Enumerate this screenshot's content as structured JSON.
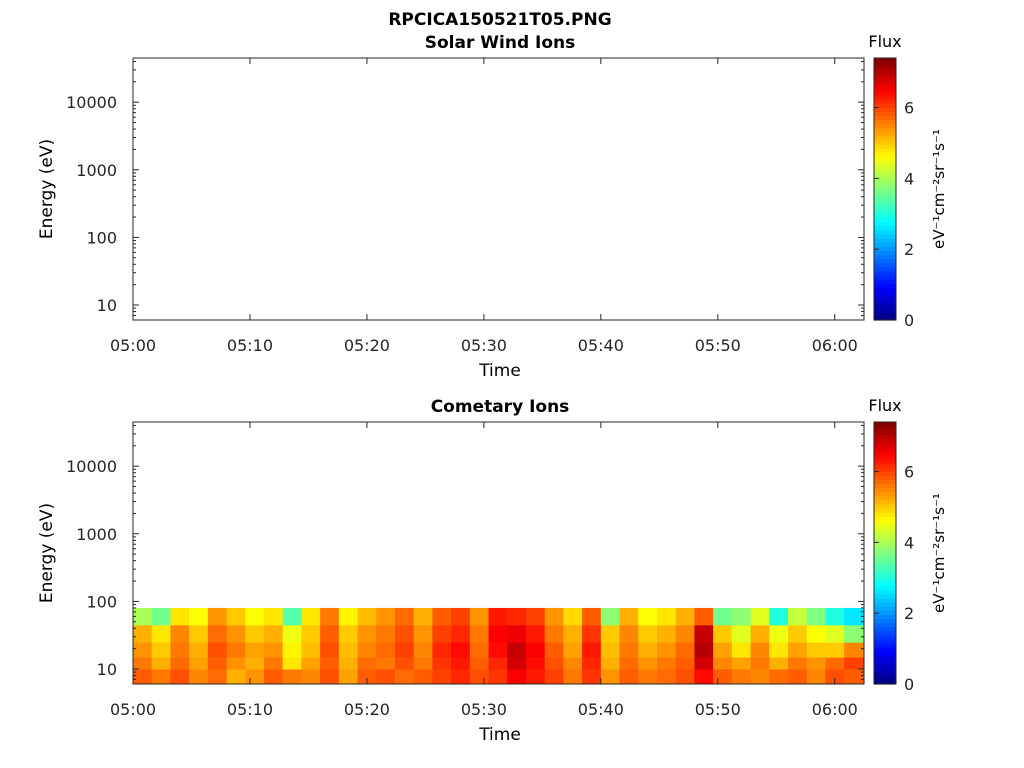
{
  "figure_title": "RPCICA150521T05.PNG",
  "chart_data": [
    {
      "type": "heatmap",
      "title": "Solar Wind Ions",
      "xlabel": "Time",
      "ylabel": "Energy (eV)",
      "x_ticks": [
        "05:00",
        "05:10",
        "05:20",
        "05:30",
        "05:40",
        "05:50",
        "06:00"
      ],
      "x_range_minutes": [
        0,
        62.5
      ],
      "y_scale": "log",
      "y_ticks": [
        10,
        100,
        1000,
        10000
      ],
      "y_tick_labels": [
        "10",
        "100",
        "1000",
        "10000"
      ],
      "ylim": [
        6,
        45000
      ],
      "colorbar": {
        "title": "Flux",
        "label": "eV⁻¹cm⁻²sr⁻¹s⁻¹",
        "ticks": [
          0,
          2,
          4,
          6
        ],
        "range": [
          0,
          7.4
        ],
        "colormap": "jet"
      },
      "cells": []
    },
    {
      "type": "heatmap",
      "title": "Cometary Ions",
      "xlabel": "Time",
      "ylabel": "Energy (eV)",
      "x_ticks": [
        "05:00",
        "05:10",
        "05:20",
        "05:30",
        "05:40",
        "05:50",
        "06:00"
      ],
      "x_range_minutes": [
        0,
        62.5
      ],
      "y_scale": "log",
      "y_ticks": [
        10,
        100,
        1000,
        10000
      ],
      "y_tick_labels": [
        "10",
        "100",
        "1000",
        "10000"
      ],
      "ylim": [
        6,
        45000
      ],
      "colorbar": {
        "title": "Flux",
        "label": "eV⁻¹cm⁻²sr⁻¹s⁻¹",
        "ticks": [
          0,
          2,
          4,
          6
        ],
        "range": [
          0,
          7.4
        ],
        "colormap": "jet"
      },
      "energy_bins_eV": [
        6,
        10,
        15,
        25,
        45,
        80
      ],
      "time_bins_minutes": [
        0,
        1.6,
        3.2,
        4.8,
        6.4,
        8,
        9.6,
        11.2,
        12.8,
        14.4,
        16,
        17.6,
        19.2,
        20.8,
        22.4,
        24,
        25.6,
        27.2,
        28.8,
        30.4,
        32,
        33.6,
        35.2,
        36.8,
        38.4,
        40,
        41.6,
        43.2,
        44.8,
        46.4,
        48,
        49.6,
        51.2,
        52.8,
        54.4,
        56,
        57.6,
        59.2,
        60.8,
        62.5
      ],
      "flux_values_by_energy_bin": [
        [
          5.8,
          5.6,
          5.9,
          5.5,
          5.7,
          5.2,
          5.4,
          5.8,
          5.6,
          5.5,
          5.9,
          5.3,
          5.8,
          5.9,
          5.7,
          5.8,
          6.0,
          6.2,
          5.9,
          6.1,
          6.5,
          6.3,
          6.0,
          5.6,
          6.1,
          5.4,
          5.8,
          5.6,
          5.7,
          5.9,
          6.4,
          5.8,
          5.6,
          5.5,
          5.7,
          5.8,
          5.5,
          5.9,
          5.8
        ],
        [
          5.6,
          5.2,
          5.7,
          5.3,
          5.8,
          5.4,
          5.2,
          5.6,
          4.8,
          5.3,
          5.8,
          5.2,
          5.7,
          5.6,
          5.9,
          5.6,
          6.1,
          6.3,
          5.8,
          6.2,
          6.8,
          6.4,
          5.9,
          5.5,
          6.2,
          5.2,
          5.7,
          5.4,
          5.6,
          5.8,
          6.8,
          5.5,
          5.3,
          5.6,
          5.2,
          5.6,
          5.4,
          5.7,
          6.0
        ],
        [
          5.4,
          5.0,
          5.6,
          5.2,
          5.9,
          5.6,
          5.3,
          5.4,
          4.7,
          5.1,
          5.9,
          5.1,
          5.5,
          5.7,
          6.0,
          5.5,
          6.2,
          6.4,
          5.7,
          6.4,
          6.9,
          6.5,
          5.8,
          5.3,
          6.3,
          5.1,
          5.6,
          5.2,
          5.4,
          5.7,
          7.0,
          5.3,
          4.8,
          5.5,
          4.8,
          5.3,
          5.0,
          5.0,
          5.5
        ],
        [
          5.2,
          4.8,
          5.5,
          5.0,
          5.7,
          5.4,
          5.0,
          5.2,
          4.5,
          5.0,
          5.8,
          5.0,
          5.4,
          5.6,
          5.9,
          5.4,
          6.0,
          6.2,
          5.6,
          6.5,
          6.6,
          6.3,
          5.6,
          5.2,
          6.1,
          5.0,
          5.5,
          5.0,
          5.2,
          5.5,
          6.9,
          5.0,
          4.4,
          5.2,
          4.5,
          5.0,
          4.6,
          4.4,
          3.8
        ],
        [
          4.0,
          3.6,
          4.8,
          4.6,
          5.4,
          5.0,
          4.6,
          4.8,
          3.4,
          4.8,
          5.6,
          4.7,
          5.1,
          5.4,
          5.7,
          5.2,
          5.8,
          6.0,
          5.4,
          6.3,
          6.2,
          6.0,
          5.4,
          4.9,
          5.8,
          3.8,
          5.2,
          4.6,
          4.8,
          5.2,
          5.8,
          3.6,
          3.8,
          4.4,
          3.0,
          4.2,
          3.7,
          3.0,
          2.6
        ]
      ]
    }
  ]
}
